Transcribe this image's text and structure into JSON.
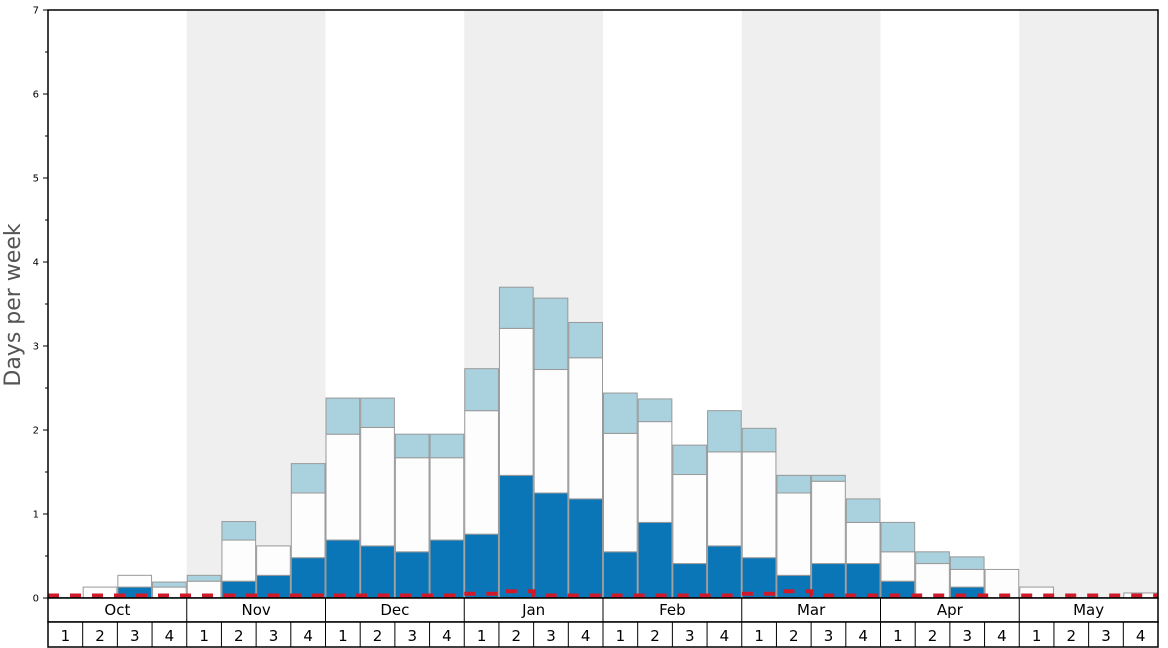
{
  "chart_data": {
    "type": "bar",
    "stacked": true,
    "ylabel": "Days per week",
    "ylim": [
      0,
      7
    ],
    "y_ticks": [
      "0",
      "1",
      "2",
      "3",
      "4",
      "5",
      "6",
      "7"
    ],
    "months": [
      "Oct",
      "Nov",
      "Dec",
      "Jan",
      "Feb",
      "Mar",
      "Apr",
      "May"
    ],
    "weeks": [
      "1",
      "2",
      "3",
      "4"
    ],
    "alternate_month_shading": true,
    "colors": {
      "dark_blue": "#0a76b8",
      "white": "#fdfdfd",
      "light_blue": "#aad2de",
      "outline": "#999999",
      "shade": "#efefef",
      "red_line": "#d01a2a"
    },
    "series": [
      {
        "color_key": "dark_blue",
        "values": [
          0,
          0,
          0.13,
          0,
          0,
          0.2,
          0.27,
          0.48,
          0.69,
          0.62,
          0.55,
          0.69,
          0.76,
          1.46,
          1.25,
          1.18,
          0.55,
          0.9,
          0.41,
          0.62,
          0.48,
          0.27,
          0.41,
          0.41,
          0.2,
          0,
          0.13,
          0,
          0,
          0,
          0,
          0
        ]
      },
      {
        "color_key": "white",
        "values": [
          0,
          0.13,
          0.14,
          0.13,
          0.2,
          0.49,
          0.35,
          0.77,
          1.26,
          1.41,
          1.12,
          0.98,
          1.47,
          1.75,
          1.47,
          1.68,
          1.41,
          1.2,
          1.06,
          1.12,
          1.26,
          0.98,
          0.98,
          0.49,
          0.35,
          0.41,
          0.21,
          0.34,
          0.13,
          0,
          0,
          0.06
        ]
      },
      {
        "color_key": "light_blue",
        "values": [
          0,
          0,
          0,
          0.06,
          0.07,
          0.22,
          0,
          0.35,
          0.43,
          0.35,
          0.28,
          0.28,
          0.5,
          0.49,
          0.85,
          0.42,
          0.48,
          0.27,
          0.35,
          0.49,
          0.28,
          0.21,
          0.07,
          0.28,
          0.35,
          0.14,
          0.15,
          0,
          0,
          0,
          0,
          0
        ]
      }
    ],
    "red_line": [
      0.03,
      0.03,
      0.03,
      0.03,
      0.03,
      0.03,
      0.03,
      0.03,
      0.03,
      0.03,
      0.03,
      0.03,
      0.05,
      0.08,
      0.03,
      0.03,
      0.03,
      0.03,
      0.03,
      0.03,
      0.05,
      0.08,
      0.03,
      0.03,
      0.03,
      0.03,
      0.03,
      0.03,
      0.03,
      0.03,
      0.03,
      0.03
    ]
  }
}
